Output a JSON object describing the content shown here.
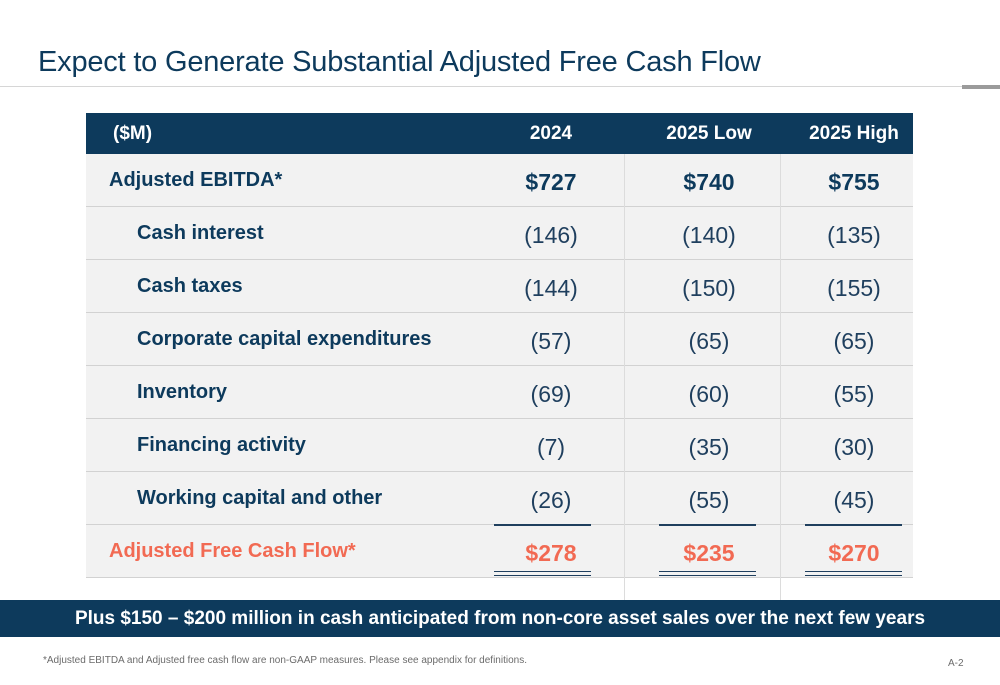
{
  "title": "Expect to Generate Substantial Adjusted Free Cash Flow",
  "table": {
    "headers": [
      "($M)",
      "2024",
      "2025 Low",
      "2025 High"
    ],
    "rows": [
      {
        "label": "Adjusted EBITDA*",
        "values": [
          "$727",
          "$740",
          "$755"
        ]
      },
      {
        "label": "Cash interest",
        "values": [
          "(146)",
          "(140)",
          "(135)"
        ]
      },
      {
        "label": "Cash taxes",
        "values": [
          "(144)",
          "(150)",
          "(155)"
        ]
      },
      {
        "label": "Corporate capital expenditures",
        "values": [
          "(57)",
          "(65)",
          "(65)"
        ]
      },
      {
        "label": "Inventory",
        "values": [
          "(69)",
          "(60)",
          "(55)"
        ]
      },
      {
        "label": "Financing activity",
        "values": [
          "(7)",
          "(35)",
          "(30)"
        ]
      },
      {
        "label": "Working capital and other",
        "values": [
          "(26)",
          "(55)",
          "(45)"
        ]
      },
      {
        "label": "Adjusted Free Cash Flow*",
        "values": [
          "$278",
          "$235",
          "$270"
        ]
      }
    ]
  },
  "banner": "Plus $150 – $200 million in cash anticipated from non-core asset sales over the next few years",
  "footnote": "*Adjusted EBITDA and Adjusted free cash flow are non-GAAP measures. Please see appendix for definitions.",
  "page_number": "A-2",
  "colors": {
    "navy": "#0d3a5c",
    "accent": "#f26a53",
    "row_bg": "#f2f2f2"
  }
}
